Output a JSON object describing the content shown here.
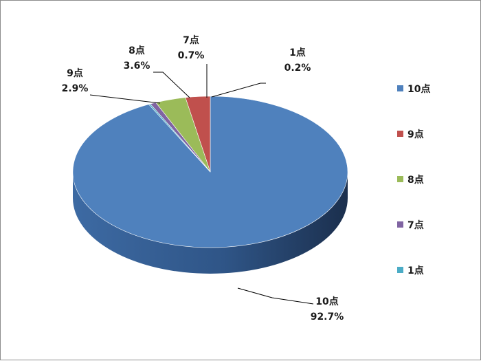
{
  "chart_data": {
    "type": "pie",
    "title": "",
    "three_d": true,
    "legend_position": "right",
    "categories": [
      "10点",
      "9点",
      "8点",
      "7点",
      "1点"
    ],
    "values": [
      92.7,
      2.9,
      3.6,
      0.7,
      0.2
    ],
    "labels": [
      {
        "name": "10点",
        "value": "92.7%"
      },
      {
        "name": "9点",
        "value": "2.9%"
      },
      {
        "name": "8点",
        "value": "3.6%"
      },
      {
        "name": "7点",
        "value": "0.7%"
      },
      {
        "name": "1点",
        "value": "0.2%"
      }
    ],
    "colors": [
      "#4f81bd",
      "#c0504d",
      "#9bbb59",
      "#8064a2",
      "#4bacc6"
    ],
    "legend": [
      "10点",
      "9点",
      "8点",
      "7点",
      "1点"
    ]
  }
}
